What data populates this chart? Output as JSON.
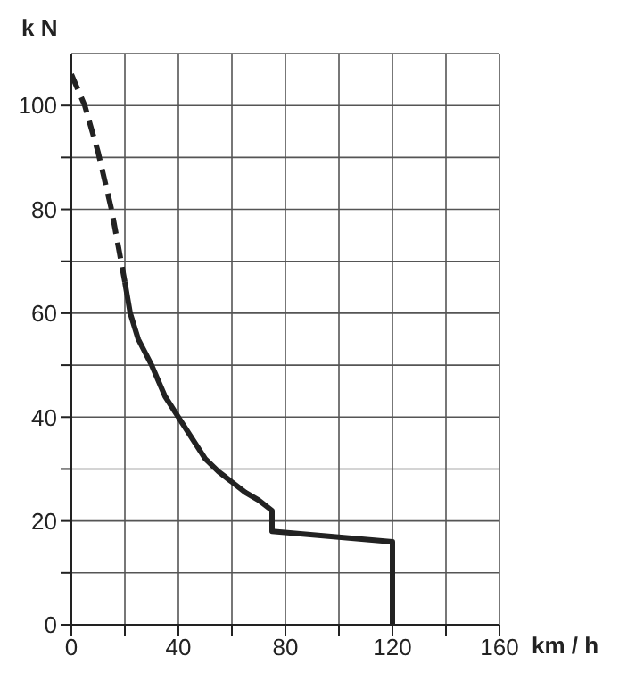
{
  "chart_data": {
    "type": "line",
    "xlabel": "km / h",
    "ylabel": "k N",
    "xlim": [
      0,
      160
    ],
    "xticks": [
      0,
      {
        "value": 20,
        "label": null
      },
      40,
      {
        "value": 60,
        "label": null
      },
      80,
      {
        "value": 100,
        "label": null
      },
      120,
      {
        "value": 140,
        "label": null
      },
      160
    ],
    "ylim": [
      0,
      110
    ],
    "yticks": [
      0,
      {
        "value": 10,
        "label": null
      },
      20,
      {
        "value": 30,
        "label": null
      },
      40,
      {
        "value": 50,
        "label": null
      },
      60,
      {
        "value": 70,
        "label": null
      },
      80,
      {
        "value": 90,
        "label": null
      },
      100
    ],
    "grid": true,
    "legend": false,
    "marker": "none",
    "series": [
      {
        "color": "#222222",
        "line_style": "dashed",
        "x": [
          0,
          5,
          10,
          15,
          20
        ],
        "values": [
          106,
          100,
          91,
          80,
          66
        ]
      },
      {
        "color": "#222222",
        "line_style": "solid",
        "x": [
          20,
          22,
          25,
          30,
          35,
          40,
          45,
          50,
          55,
          60,
          65,
          70,
          75,
          75,
          120,
          120
        ],
        "values": [
          66,
          60,
          55,
          50,
          44,
          40,
          36,
          32,
          29.5,
          27.5,
          25.5,
          24,
          22,
          18,
          16,
          0
        ]
      }
    ]
  }
}
